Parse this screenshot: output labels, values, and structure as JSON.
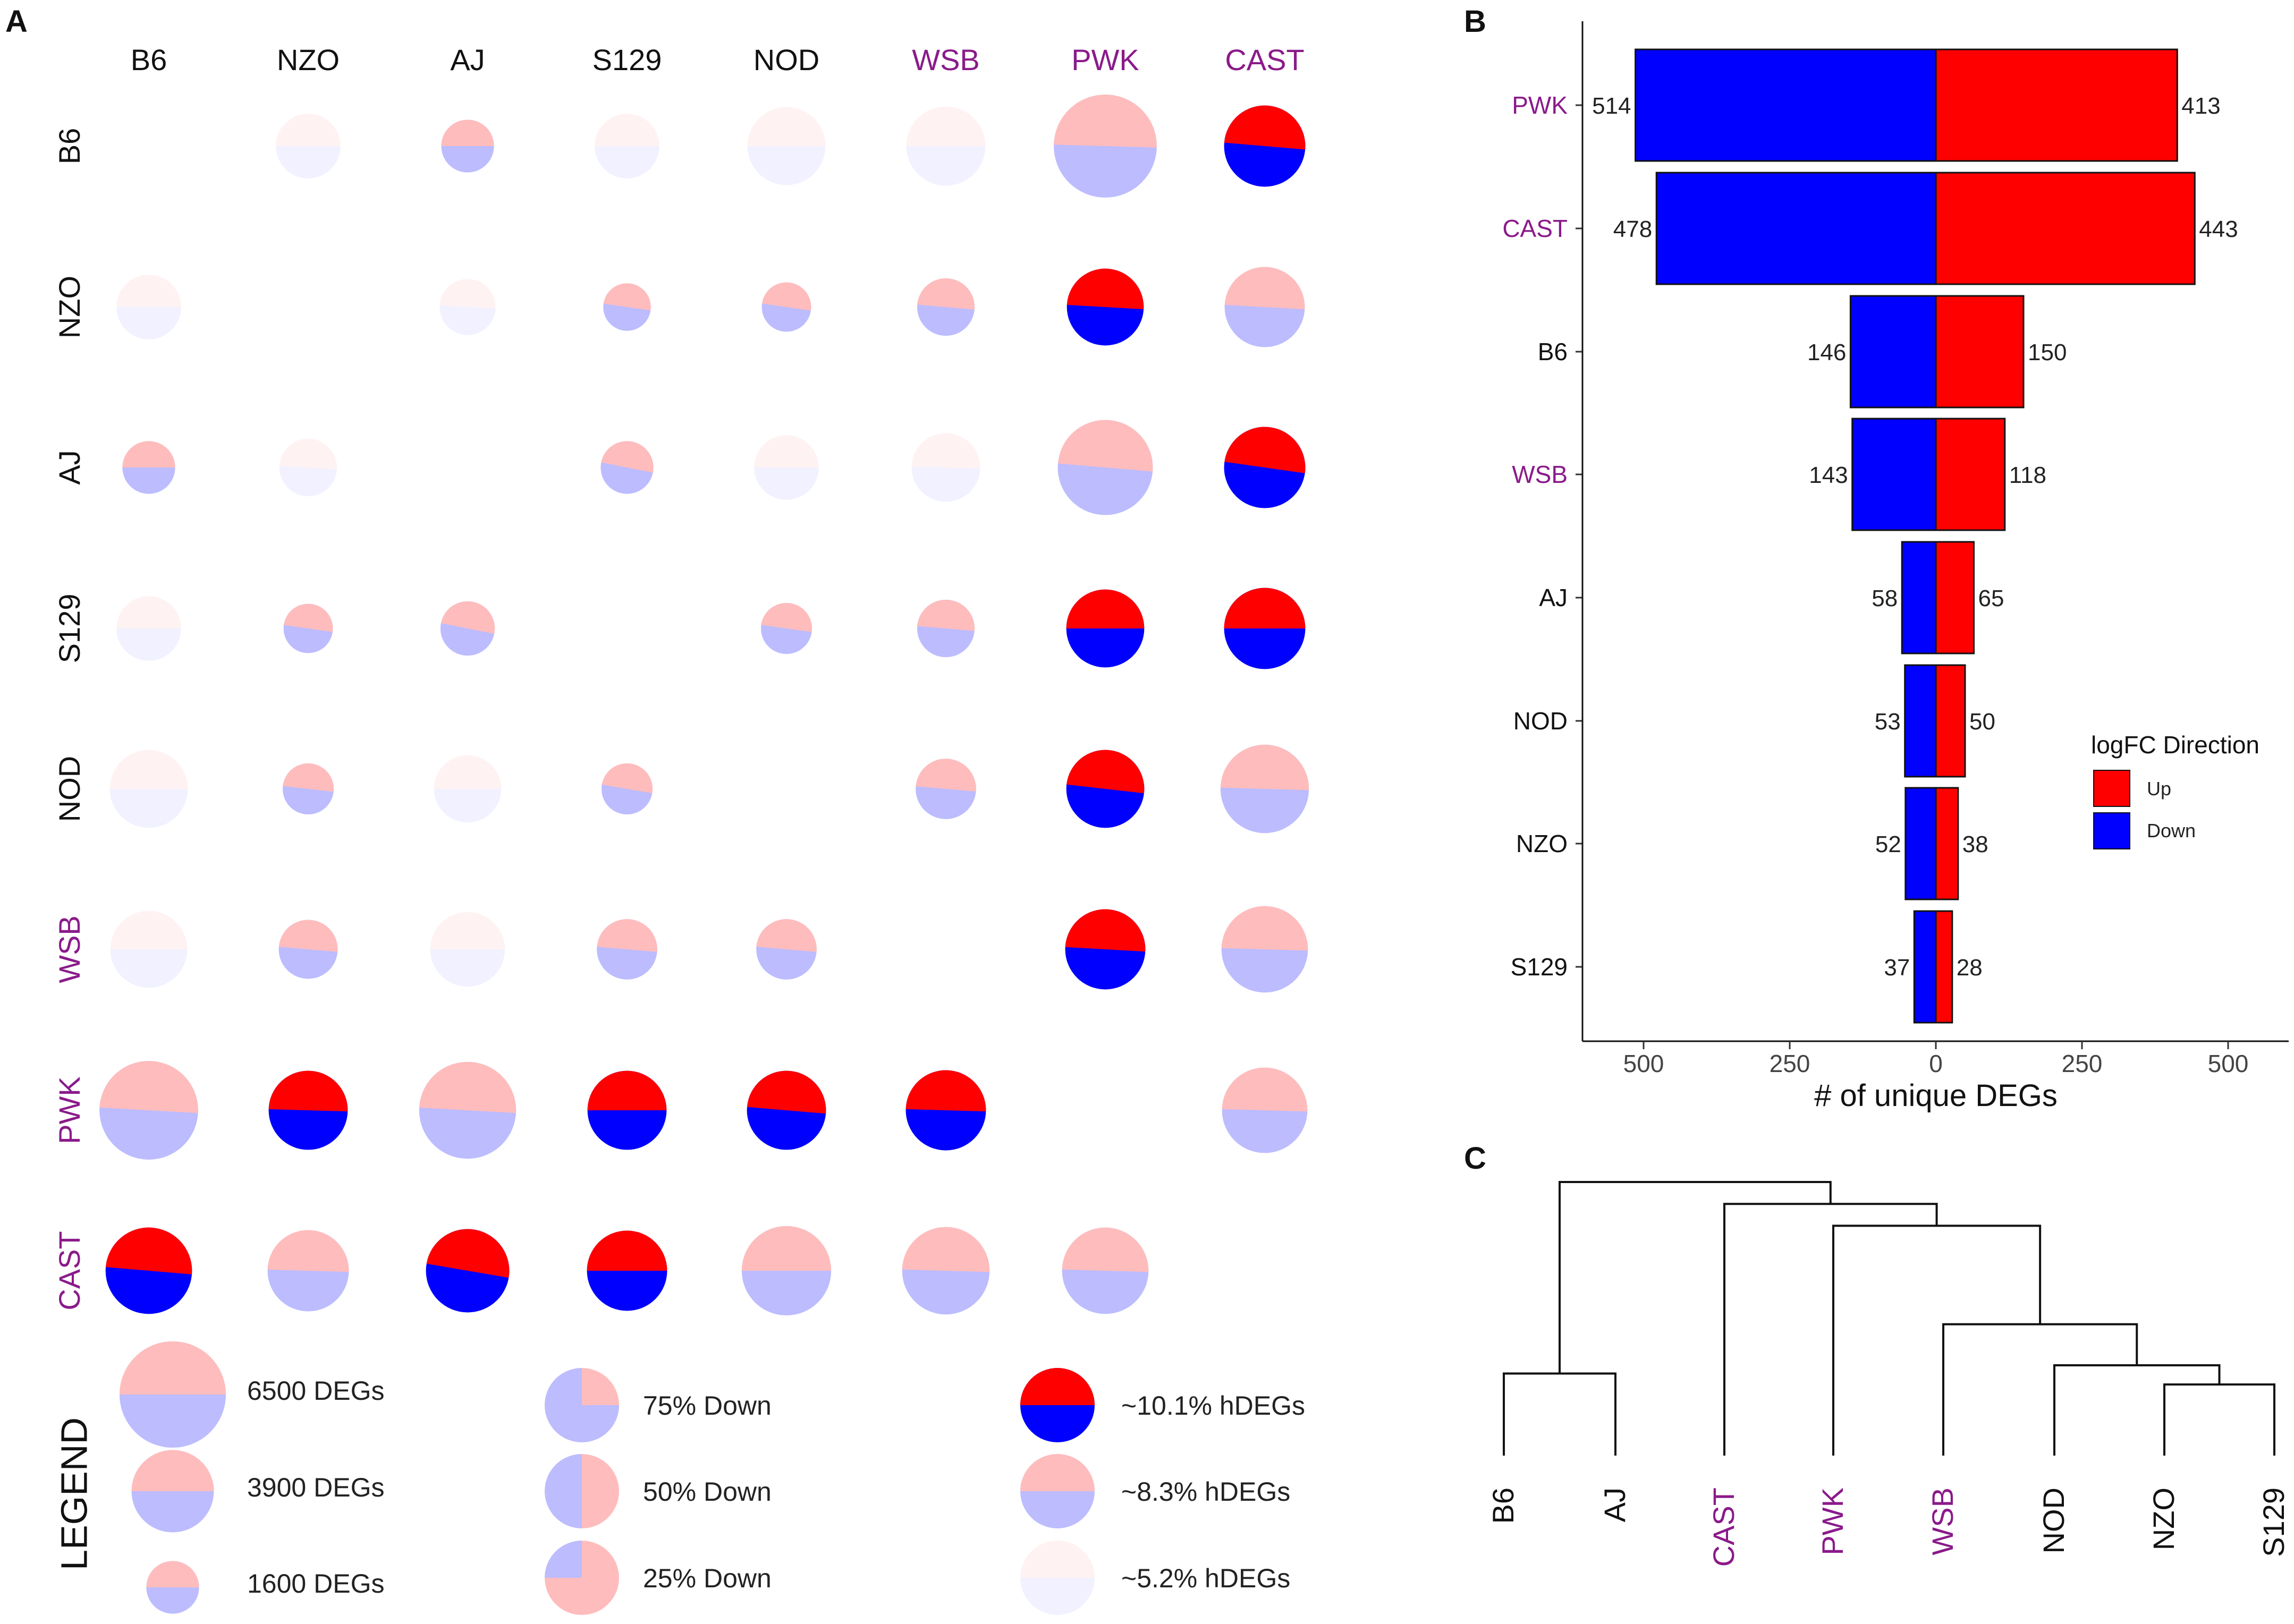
{
  "panel_labels": {
    "a": "A",
    "b": "B",
    "c": "C"
  },
  "colors": {
    "up_strong": "#ff0000",
    "down_strong": "#0000ff",
    "up_mid": "#ffbcbc",
    "down_mid": "#bcbcff",
    "up_light": "#fff2f2",
    "down_light": "#f1f1ff",
    "wild_strain": "#8a1a8a",
    "lab_strain": "#111111"
  },
  "chart_data": [
    {
      "type": "pie-matrix",
      "strains": [
        "B6",
        "NZO",
        "AJ",
        "S129",
        "NOD",
        "WSB",
        "PWK",
        "CAST"
      ],
      "wild_strains": [
        "WSB",
        "PWK",
        "CAST"
      ],
      "cells": [
        {
          "row": "B6",
          "col": "NZO",
          "degs": 2400,
          "down": 0.5,
          "level": "light"
        },
        {
          "row": "B6",
          "col": "AJ",
          "degs": 1600,
          "down": 0.5,
          "level": "mid"
        },
        {
          "row": "B6",
          "col": "S129",
          "degs": 2400,
          "down": 0.5,
          "level": "light"
        },
        {
          "row": "B6",
          "col": "NOD",
          "degs": 3500,
          "down": 0.5,
          "level": "light"
        },
        {
          "row": "B6",
          "col": "WSB",
          "degs": 3600,
          "down": 0.5,
          "level": "light"
        },
        {
          "row": "B6",
          "col": "PWK",
          "degs": 6100,
          "down": 0.51,
          "level": "mid"
        },
        {
          "row": "B6",
          "col": "CAST",
          "degs": 3800,
          "down": 0.53,
          "level": "strong"
        },
        {
          "row": "NZO",
          "col": "B6",
          "degs": 2400,
          "down": 0.5,
          "level": "light"
        },
        {
          "row": "NZO",
          "col": "AJ",
          "degs": 1800,
          "down": 0.52,
          "level": "light"
        },
        {
          "row": "NZO",
          "col": "S129",
          "degs": 1300,
          "down": 0.55,
          "level": "mid"
        },
        {
          "row": "NZO",
          "col": "NOD",
          "degs": 1400,
          "down": 0.55,
          "level": "mid"
        },
        {
          "row": "NZO",
          "col": "WSB",
          "degs": 1900,
          "down": 0.53,
          "level": "mid"
        },
        {
          "row": "NZO",
          "col": "PWK",
          "degs": 3400,
          "down": 0.52,
          "level": "strong"
        },
        {
          "row": "NZO",
          "col": "CAST",
          "degs": 3700,
          "down": 0.52,
          "level": "mid"
        },
        {
          "row": "AJ",
          "col": "B6",
          "degs": 1600,
          "down": 0.5,
          "level": "mid"
        },
        {
          "row": "AJ",
          "col": "NZO",
          "degs": 1900,
          "down": 0.52,
          "level": "light"
        },
        {
          "row": "AJ",
          "col": "S129",
          "degs": 1600,
          "down": 0.57,
          "level": "mid"
        },
        {
          "row": "AJ",
          "col": "NOD",
          "degs": 2400,
          "down": 0.5,
          "level": "light"
        },
        {
          "row": "AJ",
          "col": "WSB",
          "degs": 2700,
          "down": 0.51,
          "level": "light"
        },
        {
          "row": "AJ",
          "col": "PWK",
          "degs": 5200,
          "down": 0.53,
          "level": "mid"
        },
        {
          "row": "AJ",
          "col": "CAST",
          "degs": 3800,
          "down": 0.55,
          "level": "strong"
        },
        {
          "row": "S129",
          "col": "B6",
          "degs": 2400,
          "down": 0.5,
          "level": "light"
        },
        {
          "row": "S129",
          "col": "NZO",
          "degs": 1400,
          "down": 0.55,
          "level": "mid"
        },
        {
          "row": "S129",
          "col": "AJ",
          "degs": 1700,
          "down": 0.57,
          "level": "mid"
        },
        {
          "row": "S129",
          "col": "NOD",
          "degs": 1500,
          "down": 0.55,
          "level": "mid"
        },
        {
          "row": "S129",
          "col": "WSB",
          "degs": 1900,
          "down": 0.53,
          "level": "mid"
        },
        {
          "row": "S129",
          "col": "PWK",
          "degs": 3500,
          "down": 0.5,
          "level": "strong"
        },
        {
          "row": "S129",
          "col": "CAST",
          "degs": 3800,
          "down": 0.5,
          "level": "strong"
        },
        {
          "row": "NOD",
          "col": "B6",
          "degs": 3500,
          "down": 0.5,
          "level": "light"
        },
        {
          "row": "NOD",
          "col": "NZO",
          "degs": 1500,
          "down": 0.54,
          "level": "mid"
        },
        {
          "row": "NOD",
          "col": "AJ",
          "degs": 2600,
          "down": 0.5,
          "level": "light"
        },
        {
          "row": "NOD",
          "col": "S129",
          "degs": 1500,
          "down": 0.56,
          "level": "mid"
        },
        {
          "row": "NOD",
          "col": "WSB",
          "degs": 2100,
          "down": 0.53,
          "level": "mid"
        },
        {
          "row": "NOD",
          "col": "PWK",
          "degs": 3500,
          "down": 0.54,
          "level": "strong"
        },
        {
          "row": "NOD",
          "col": "CAST",
          "degs": 4500,
          "down": 0.51,
          "level": "mid"
        },
        {
          "row": "WSB",
          "col": "B6",
          "degs": 3400,
          "down": 0.5,
          "level": "light"
        },
        {
          "row": "WSB",
          "col": "NZO",
          "degs": 2000,
          "down": 0.53,
          "level": "mid"
        },
        {
          "row": "WSB",
          "col": "AJ",
          "degs": 3200,
          "down": 0.5,
          "level": "light"
        },
        {
          "row": "WSB",
          "col": "S129",
          "degs": 2100,
          "down": 0.53,
          "level": "mid"
        },
        {
          "row": "WSB",
          "col": "NOD",
          "degs": 2100,
          "down": 0.53,
          "level": "mid"
        },
        {
          "row": "WSB",
          "col": "PWK",
          "degs": 3700,
          "down": 0.52,
          "level": "strong"
        },
        {
          "row": "WSB",
          "col": "CAST",
          "degs": 4300,
          "down": 0.51,
          "level": "mid"
        },
        {
          "row": "PWK",
          "col": "B6",
          "degs": 5600,
          "down": 0.52,
          "level": "mid"
        },
        {
          "row": "PWK",
          "col": "NZO",
          "degs": 3600,
          "down": 0.51,
          "level": "strong"
        },
        {
          "row": "PWK",
          "col": "AJ",
          "degs": 5400,
          "down": 0.52,
          "level": "mid"
        },
        {
          "row": "PWK",
          "col": "S129",
          "degs": 3600,
          "down": 0.5,
          "level": "strong"
        },
        {
          "row": "PWK",
          "col": "NOD",
          "degs": 3600,
          "down": 0.53,
          "level": "strong"
        },
        {
          "row": "PWK",
          "col": "WSB",
          "degs": 3700,
          "down": 0.51,
          "level": "strong"
        },
        {
          "row": "PWK",
          "col": "CAST",
          "degs": 4200,
          "down": 0.51,
          "level": "mid"
        },
        {
          "row": "CAST",
          "col": "B6",
          "degs": 4300,
          "down": 0.53,
          "level": "strong"
        },
        {
          "row": "CAST",
          "col": "NZO",
          "degs": 3800,
          "down": 0.51,
          "level": "mid"
        },
        {
          "row": "CAST",
          "col": "AJ",
          "degs": 4000,
          "down": 0.56,
          "level": "strong"
        },
        {
          "row": "CAST",
          "col": "S129",
          "degs": 3700,
          "down": 0.5,
          "level": "strong"
        },
        {
          "row": "CAST",
          "col": "NOD",
          "degs": 4600,
          "down": 0.5,
          "level": "mid"
        },
        {
          "row": "CAST",
          "col": "WSB",
          "degs": 4400,
          "down": 0.51,
          "level": "mid"
        },
        {
          "row": "CAST",
          "col": "PWK",
          "degs": 4300,
          "down": 0.51,
          "level": "mid"
        }
      ],
      "legend": {
        "title": "LEGEND",
        "size_items": [
          {
            "degs": 6500,
            "label": "6500 DEGs"
          },
          {
            "degs": 3900,
            "label": "3900 DEGs"
          },
          {
            "degs": 1600,
            "label": "1600 DEGs"
          }
        ],
        "down_items": [
          {
            "down": 0.75,
            "label": "75% Down"
          },
          {
            "down": 0.5,
            "label": "50% Down"
          },
          {
            "down": 0.25,
            "label": "25% Down"
          }
        ],
        "hdeg_items": [
          {
            "level": "strong",
            "label": "~10.1% hDEGs"
          },
          {
            "level": "mid",
            "label": "~8.3% hDEGs"
          },
          {
            "level": "light",
            "label": "~5.2% hDEGs"
          }
        ]
      }
    },
    {
      "type": "bar",
      "orientation": "horizontal-diverging",
      "categories": [
        "PWK",
        "CAST",
        "B6",
        "WSB",
        "AJ",
        "NOD",
        "NZO",
        "S129"
      ],
      "series": [
        {
          "name": "Down",
          "values": [
            514,
            478,
            146,
            143,
            58,
            53,
            52,
            37
          ]
        },
        {
          "name": "Up",
          "values": [
            413,
            443,
            150,
            118,
            65,
            50,
            38,
            28
          ]
        }
      ],
      "xlabel": "# of unique DEGs",
      "xticks": [
        "500",
        "250",
        "0",
        "250",
        "500"
      ],
      "xlim": [
        -550,
        600
      ],
      "legend_title": "logFC Direction",
      "legend_position": "right"
    },
    {
      "type": "dendrogram",
      "leaves": [
        "B6",
        "AJ",
        "CAST",
        "PWK",
        "WSB",
        "NOD",
        "NZO",
        "S129"
      ],
      "merges": [
        {
          "a": "B6",
          "b": "AJ",
          "height": 0.3
        },
        {
          "a": "NZO",
          "b": "S129",
          "height": 0.26
        },
        {
          "a": "NOD",
          "b": "NZO+S129",
          "height": 0.33
        },
        {
          "a": "WSB",
          "b": "NOD+NZO+S129",
          "height": 0.48
        },
        {
          "a": "PWK",
          "b": "WSB+NOD+NZO+S129",
          "height": 0.84
        },
        {
          "a": "CAST",
          "b": "PWK+WSB+NOD+NZO+S129",
          "height": 0.92
        },
        {
          "a": "B6+AJ",
          "b": "CAST+PWK+WSB+NOD+NZO+S129",
          "height": 1.0
        }
      ]
    }
  ]
}
